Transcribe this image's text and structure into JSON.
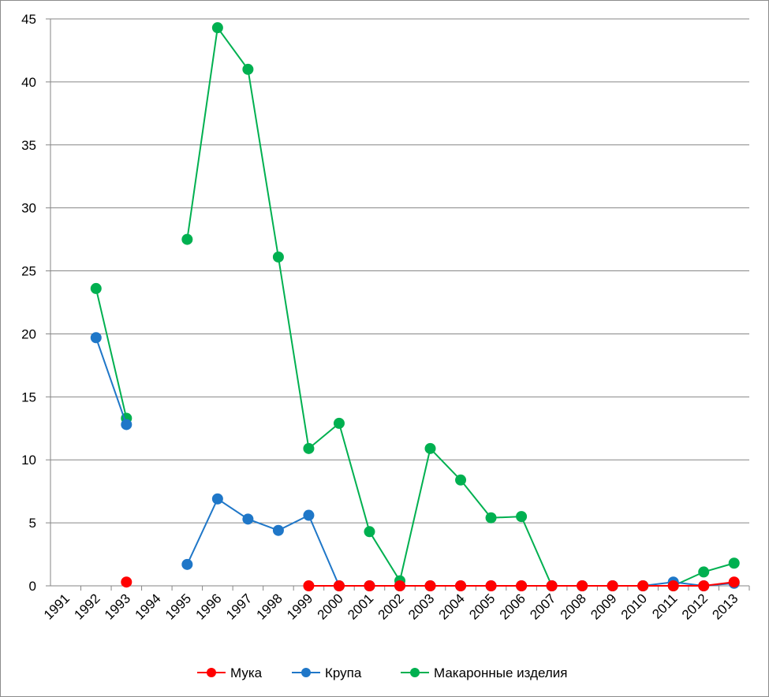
{
  "chart_data": {
    "type": "line",
    "title": "",
    "xlabel": "",
    "ylabel": "",
    "categories": [
      "1991",
      "1992",
      "1993",
      "1994",
      "1995",
      "1996",
      "1997",
      "1998",
      "1999",
      "2000",
      "2001",
      "2002",
      "2003",
      "2004",
      "2005",
      "2006",
      "2007",
      "2008",
      "2009",
      "2010",
      "2011",
      "2012",
      "2013"
    ],
    "ylim": [
      0,
      45
    ],
    "yticks": [
      "0",
      "5",
      "10",
      "15",
      "20",
      "25",
      "30",
      "35",
      "40",
      "45"
    ],
    "grid": true,
    "legend_position": "bottom",
    "series": [
      {
        "name": "Мука",
        "color": "#ff0000",
        "values": [
          null,
          null,
          0.3,
          null,
          null,
          null,
          null,
          null,
          0,
          0,
          0,
          0,
          0,
          0,
          0,
          0,
          0,
          0,
          0,
          0,
          0,
          0,
          0.3
        ]
      },
      {
        "name": "Крупа",
        "color": "#1f77c8",
        "values": [
          null,
          19.7,
          12.8,
          null,
          1.7,
          6.9,
          5.3,
          4.4,
          5.6,
          0,
          0,
          0,
          0,
          0,
          0,
          0,
          0,
          0,
          0,
          0,
          0.3,
          0,
          0.2
        ]
      },
      {
        "name": "Макаронные изделия",
        "color": "#00b050",
        "values": [
          null,
          23.6,
          13.3,
          null,
          27.5,
          44.3,
          41.0,
          26.1,
          10.9,
          12.9,
          4.3,
          0.4,
          10.9,
          8.4,
          5.4,
          5.5,
          0,
          0,
          0,
          0,
          0,
          1.1,
          1.8
        ]
      }
    ]
  }
}
